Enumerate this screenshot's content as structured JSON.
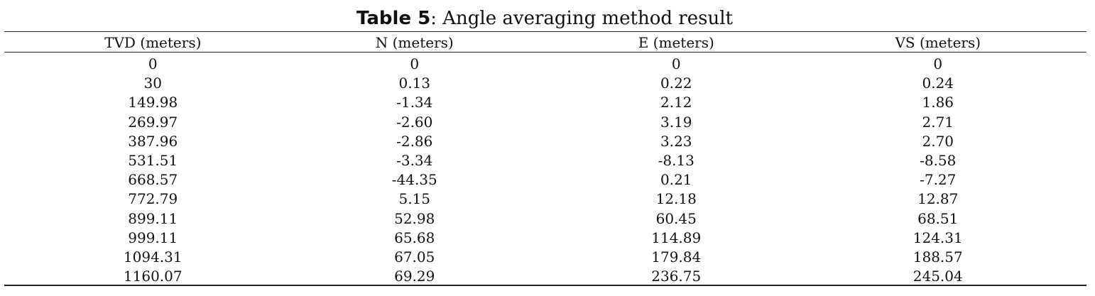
{
  "caption": {
    "label": "Table 5",
    "text": ": Angle averaging method result"
  },
  "table": {
    "columns": [
      "TVD (meters)",
      "N (meters)",
      "E (meters)",
      "VS (meters)"
    ],
    "rows": [
      [
        "0",
        "0",
        "0",
        "0"
      ],
      [
        "30",
        "0.13",
        "0.22",
        "0.24"
      ],
      [
        "149.98",
        "-1.34",
        "2.12",
        "1.86"
      ],
      [
        "269.97",
        "-2.60",
        "3.19",
        "2.71"
      ],
      [
        "387.96",
        "-2.86",
        "3.23",
        "2.70"
      ],
      [
        "531.51",
        "-3.34",
        "-8.13",
        "-8.58"
      ],
      [
        "668.57",
        "-44.35",
        "0.21",
        "-7.27"
      ],
      [
        "772.79",
        "5.15",
        "12.18",
        "12.87"
      ],
      [
        "899.11",
        "52.98",
        "60.45",
        "68.51"
      ],
      [
        "999.11",
        "65.68",
        "114.89",
        "124.31"
      ],
      [
        "1094.31",
        "67.05",
        "179.84",
        "188.57"
      ],
      [
        "1160.07",
        "69.29",
        "236.75",
        "245.04"
      ]
    ]
  }
}
